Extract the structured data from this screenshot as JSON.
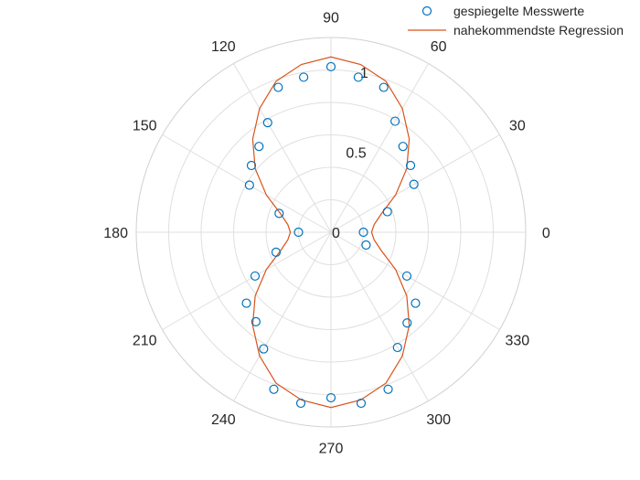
{
  "chart_data": {
    "type": "polar",
    "theta_ticks": [
      "0",
      "30",
      "60",
      "90",
      "120",
      "150",
      "180",
      "210",
      "240",
      "270",
      "300",
      "330"
    ],
    "r_ticks": [
      "0",
      "0.5",
      "1"
    ],
    "rlim": [
      0,
      1.2
    ],
    "legend": {
      "placement": "top-right",
      "entries": [
        "gespiegelte Messwerte",
        "nahekommendste Regression"
      ]
    },
    "colors": {
      "markers": "#0072BD",
      "regression": "#D95319",
      "grid": "#dfdfdf"
    },
    "series": [
      {
        "name": "gespiegelte Messwerte",
        "style": "markers",
        "theta_deg": [
          0,
          20,
          30,
          40,
          50,
          60,
          70,
          80,
          90,
          100,
          110,
          120,
          130,
          140,
          150,
          160,
          180,
          200,
          210,
          220,
          230,
          240,
          250,
          260,
          270,
          280,
          290,
          300,
          310,
          320,
          330,
          340
        ],
        "r": [
          0.2,
          0.37,
          0.59,
          0.64,
          0.69,
          0.79,
          0.95,
          0.97,
          1.02,
          0.97,
          0.95,
          0.78,
          0.69,
          0.64,
          0.58,
          0.34,
          0.2,
          0.36,
          0.54,
          0.68,
          0.72,
          0.83,
          1.03,
          1.07,
          1.02,
          1.07,
          1.03,
          0.82,
          0.73,
          0.68,
          0.54,
          0.23
        ]
      },
      {
        "name": "nahekommendste Regression",
        "style": "line",
        "theta_deg": [
          0,
          10,
          20,
          30,
          40,
          50,
          60,
          70,
          80,
          90,
          100,
          110,
          120,
          130,
          140,
          150,
          160,
          170,
          180,
          190,
          200,
          210,
          220,
          230,
          240,
          250,
          260,
          270,
          280,
          290,
          300,
          310,
          320,
          330,
          340,
          350,
          360
        ],
        "r": [
          0.25,
          0.27,
          0.33,
          0.46,
          0.61,
          0.75,
          0.88,
          0.99,
          1.05,
          1.08,
          1.05,
          0.99,
          0.88,
          0.75,
          0.61,
          0.46,
          0.33,
          0.27,
          0.25,
          0.27,
          0.33,
          0.46,
          0.61,
          0.75,
          0.88,
          0.99,
          1.05,
          1.08,
          1.05,
          0.99,
          0.88,
          0.75,
          0.61,
          0.46,
          0.33,
          0.27,
          0.25
        ]
      }
    ]
  }
}
